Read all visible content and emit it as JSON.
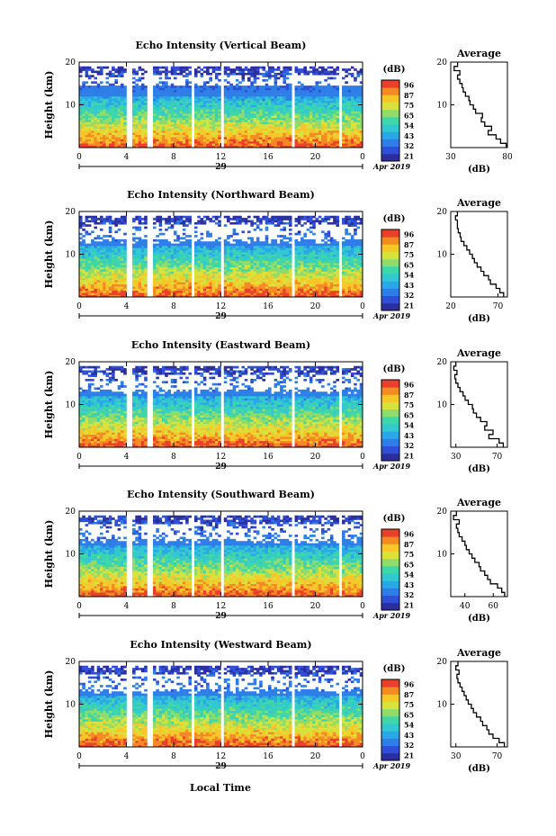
{
  "chart_data": [
    {
      "type": "heatmap",
      "title": "Echo Intensity (Vertical Beam)",
      "ylabel": "Height (km)",
      "ylim": [
        0,
        20
      ],
      "x_ticks": [
        "0",
        "4",
        "8",
        "12",
        "16",
        "20",
        "0"
      ],
      "day_label": "29",
      "date_label": "Apr 2019",
      "colorbar_unit": "(dB)",
      "colorbar_ticks": [
        "96",
        "87",
        "75",
        "65",
        "54",
        "43",
        "32",
        "21"
      ],
      "profile": {
        "title": "Average",
        "xlabel": "(dB)",
        "xlim": [
          30,
          80
        ],
        "x_ticks": [
          "30",
          "80"
        ],
        "y": [
          1,
          2,
          3,
          4,
          5,
          6,
          7,
          8,
          9,
          10,
          11,
          12,
          13,
          14,
          15,
          16,
          17,
          18,
          19,
          20
        ],
        "values": [
          79,
          74,
          70,
          63,
          66,
          60,
          57,
          58,
          52,
          50,
          47,
          46,
          43,
          41,
          40,
          38,
          36,
          38,
          33,
          36
        ]
      }
    },
    {
      "type": "heatmap",
      "title": "Echo Intensity (Northward Beam)",
      "ylabel": "Height (km)",
      "ylim": [
        0,
        20
      ],
      "x_ticks": [
        "0",
        "4",
        "8",
        "12",
        "16",
        "20",
        "0"
      ],
      "day_label": "29",
      "date_label": "Apr 2019",
      "colorbar_unit": "(dB)",
      "colorbar_ticks": [
        "96",
        "87",
        "75",
        "65",
        "54",
        "43",
        "32",
        "21"
      ],
      "profile": {
        "title": "Average",
        "xlabel": "(dB)",
        "xlim": [
          20,
          80
        ],
        "x_ticks": [
          "20",
          "70"
        ],
        "y": [
          1,
          2,
          3,
          4,
          5,
          6,
          7,
          8,
          9,
          10,
          11,
          12,
          13,
          14,
          15,
          16,
          17,
          18,
          19,
          20
        ],
        "values": [
          76,
          72,
          68,
          62,
          60,
          55,
          52,
          48,
          45,
          43,
          40,
          37,
          34,
          31,
          30,
          28,
          27,
          27,
          25,
          27
        ]
      }
    },
    {
      "type": "heatmap",
      "title": "Echo Intensity (Eastward Beam)",
      "ylabel": "Height (km)",
      "ylim": [
        0,
        20
      ],
      "x_ticks": [
        "0",
        "4",
        "8",
        "12",
        "16",
        "20",
        "0"
      ],
      "day_label": "29",
      "date_label": "Apr 2019",
      "colorbar_unit": "(dB)",
      "colorbar_ticks": [
        "96",
        "87",
        "75",
        "65",
        "54",
        "43",
        "32",
        "21"
      ],
      "profile": {
        "title": "Average",
        "xlabel": "(dB)",
        "xlim": [
          25,
          80
        ],
        "x_ticks": [
          "30",
          "70"
        ],
        "y": [
          1,
          2,
          3,
          4,
          5,
          6,
          7,
          8,
          9,
          10,
          11,
          12,
          13,
          14,
          15,
          16,
          17,
          18,
          19,
          20
        ],
        "values": [
          76,
          72,
          62,
          66,
          58,
          60,
          54,
          50,
          47,
          46,
          42,
          39,
          37,
          34,
          32,
          30,
          29,
          31,
          28,
          30
        ]
      }
    },
    {
      "type": "heatmap",
      "title": "Echo Intensity (Southward Beam)",
      "ylabel": "Height (km)",
      "ylim": [
        0,
        20
      ],
      "x_ticks": [
        "0",
        "4",
        "8",
        "12",
        "16",
        "20",
        "0"
      ],
      "day_label": "29",
      "date_label": "Apr 2019",
      "colorbar_unit": "(dB)",
      "colorbar_ticks": [
        "96",
        "87",
        "75",
        "65",
        "54",
        "43",
        "32",
        "21"
      ],
      "profile": {
        "title": "Average",
        "xlabel": "(dB)",
        "xlim": [
          30,
          70
        ],
        "x_ticks": [
          "40",
          "60"
        ],
        "y": [
          1,
          2,
          3,
          4,
          5,
          6,
          7,
          8,
          9,
          10,
          11,
          12,
          13,
          14,
          15,
          16,
          17,
          18,
          19,
          20
        ],
        "values": [
          68,
          66,
          63,
          58,
          56,
          54,
          51,
          50,
          47,
          45,
          43,
          41,
          40,
          38,
          36,
          35,
          34,
          36,
          32,
          34
        ]
      }
    },
    {
      "type": "heatmap",
      "title": "Echo Intensity (Westward Beam)",
      "ylabel": "Height (km)",
      "ylim": [
        0,
        20
      ],
      "x_ticks": [
        "0",
        "4",
        "8",
        "12",
        "16",
        "20",
        "0"
      ],
      "day_label": "29",
      "date_label": "Apr 2019",
      "colorbar_unit": "(dB)",
      "colorbar_ticks": [
        "96",
        "87",
        "75",
        "65",
        "54",
        "43",
        "32",
        "21"
      ],
      "profile": {
        "title": "Average",
        "xlabel": "(dB)",
        "xlim": [
          25,
          80
        ],
        "x_ticks": [
          "30",
          "70"
        ],
        "y": [
          1,
          2,
          3,
          4,
          5,
          6,
          7,
          8,
          9,
          10,
          11,
          12,
          13,
          14,
          15,
          16,
          17,
          18,
          19,
          20
        ],
        "values": [
          77,
          72,
          66,
          62,
          60,
          56,
          54,
          50,
          47,
          45,
          42,
          40,
          38,
          36,
          34,
          32,
          31,
          33,
          30,
          32
        ]
      }
    }
  ],
  "xlabel": "Local Time",
  "colormap": [
    "#2b2f9e",
    "#2f4fd6",
    "#2e7ee8",
    "#2aa7e6",
    "#33c8d0",
    "#3fd6a8",
    "#8fdc6a",
    "#d8e23c",
    "#f7c72a",
    "#f48a23",
    "#e8402a"
  ]
}
